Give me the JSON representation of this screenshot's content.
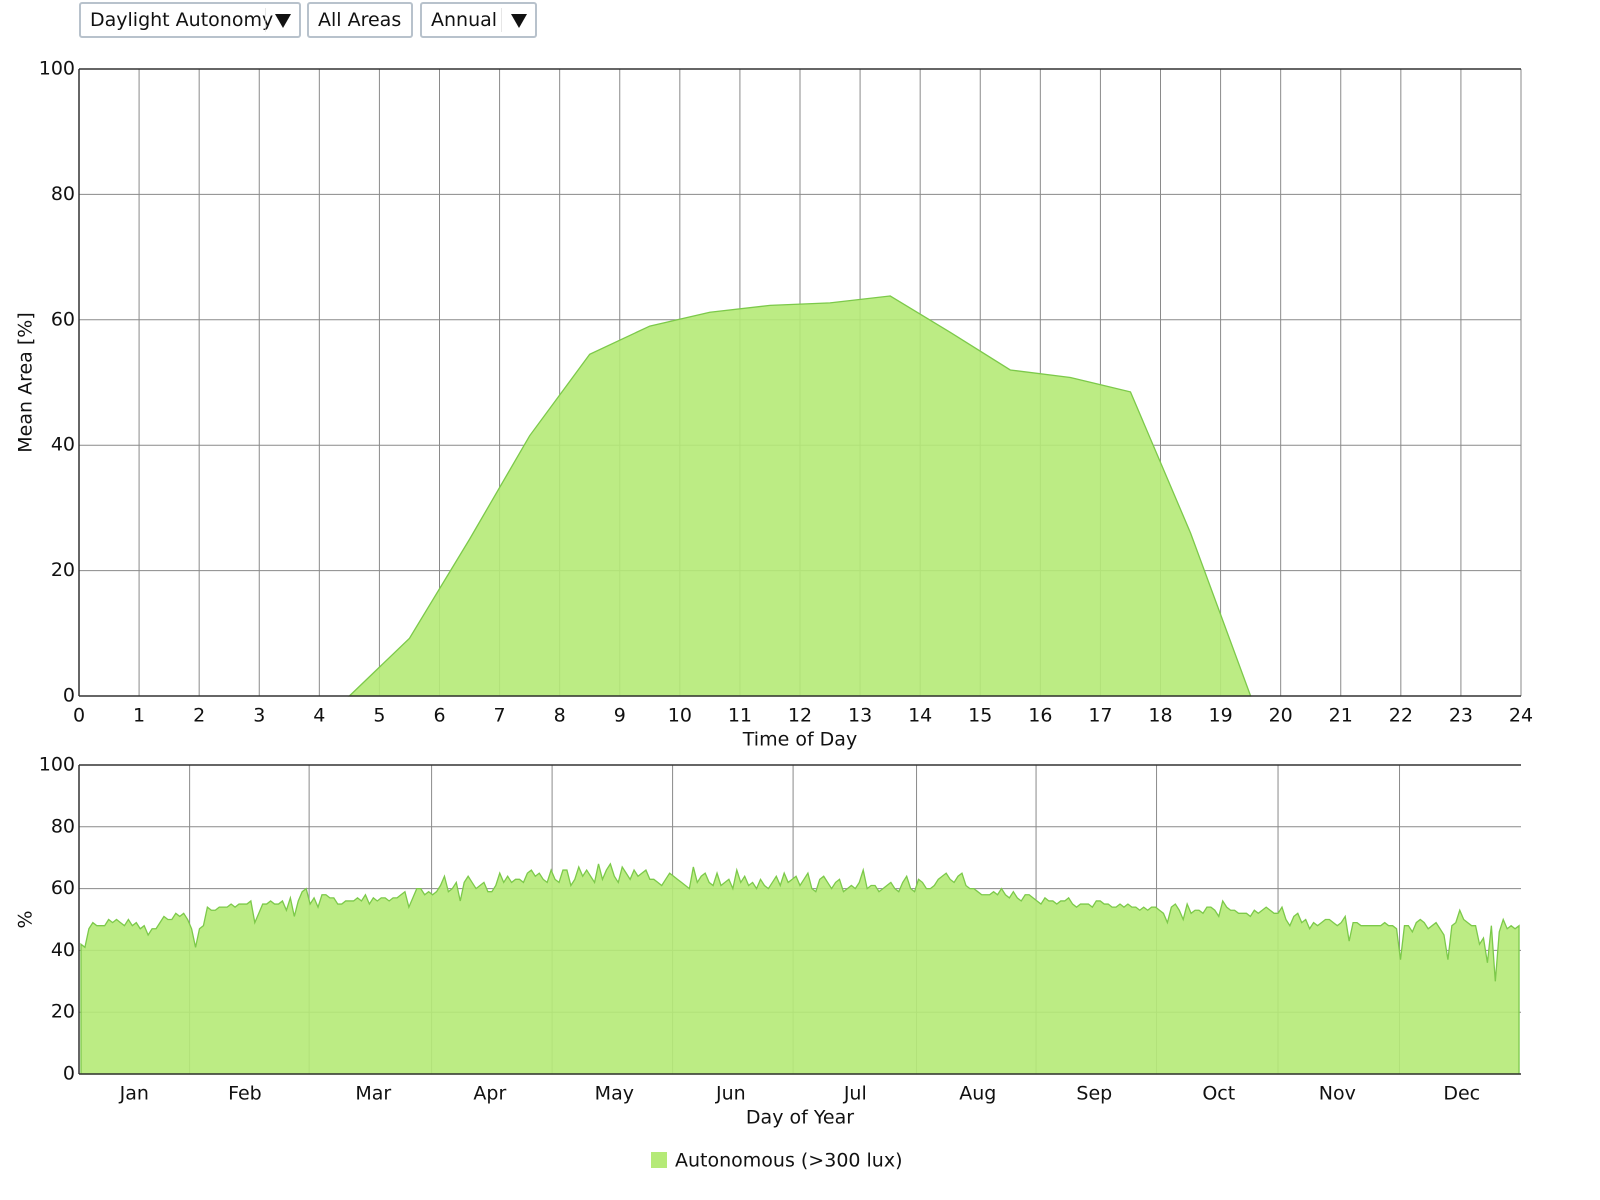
{
  "controls": {
    "metric": "Daylight Autonomy",
    "area": "All Areas",
    "period": "Annual"
  },
  "chart_data": [
    {
      "type": "area",
      "xlabel": "Time of Day",
      "ylabel": "Mean Area [%]",
      "xlim": [
        0,
        24
      ],
      "ylim": [
        0,
        100
      ],
      "xticks": [
        0,
        1,
        2,
        3,
        4,
        5,
        6,
        7,
        8,
        9,
        10,
        11,
        12,
        13,
        14,
        15,
        16,
        17,
        18,
        19,
        20,
        21,
        22,
        23,
        24
      ],
      "yticks": [
        0,
        20,
        40,
        60,
        80,
        100
      ],
      "grid": true,
      "series": [
        {
          "name": "Autonomous (>300 lux)",
          "color": "#b5ea77",
          "line_color": "#7cc94a",
          "x": [
            4.5,
            5.5,
            6.5,
            7.5,
            8.5,
            9.5,
            10.5,
            11.5,
            12.5,
            13.5,
            14.5,
            15.5,
            16.5,
            17.5,
            18.5,
            19.5
          ],
          "values": [
            0,
            9.2,
            25,
            41.5,
            54.5,
            59,
            61.2,
            62.3,
            62.7,
            63.8,
            58,
            52,
            50.8,
            48.5,
            26,
            0
          ]
        }
      ]
    },
    {
      "type": "area",
      "xlabel": "Day of Year",
      "ylabel": "%",
      "xlim": [
        0,
        365
      ],
      "ylim": [
        0,
        100
      ],
      "xticks": [
        {
          "value": 14,
          "label": "Jan"
        },
        {
          "value": 42,
          "label": "Feb"
        },
        {
          "value": 74.5,
          "label": "Mar"
        },
        {
          "value": 104,
          "label": "Apr"
        },
        {
          "value": 135.5,
          "label": "May"
        },
        {
          "value": 165,
          "label": "Jun"
        },
        {
          "value": 196.5,
          "label": "Jul"
        },
        {
          "value": 227.5,
          "label": "Aug"
        },
        {
          "value": 257,
          "label": "Sep"
        },
        {
          "value": 288.5,
          "label": "Oct"
        },
        {
          "value": 318.5,
          "label": "Nov"
        },
        {
          "value": 350,
          "label": "Dec"
        }
      ],
      "yticks": [
        0,
        20,
        40,
        60,
        80,
        100
      ],
      "grid": true,
      "series": [
        {
          "color": "#b5ea77",
          "line_color": "#7cc94a",
          "values": [
            42,
            41,
            47,
            49,
            48,
            48,
            48,
            50,
            49,
            50,
            49,
            48,
            50,
            48,
            49,
            47,
            48,
            45,
            47,
            47,
            49,
            51,
            50,
            50,
            52,
            51,
            52,
            50,
            47,
            41,
            47,
            48,
            54,
            53,
            53,
            54,
            54,
            54,
            55,
            54,
            55,
            55,
            55,
            56,
            49,
            52,
            55,
            55,
            56,
            55,
            55,
            56,
            53,
            57,
            51,
            56,
            59,
            60,
            55,
            57,
            54,
            58,
            58,
            57,
            57,
            55,
            55,
            56,
            56,
            56,
            57,
            56,
            58,
            55,
            57,
            56,
            57,
            57,
            56,
            57,
            57,
            58,
            59,
            54,
            57,
            60,
            60,
            58,
            59,
            58,
            59,
            61,
            64,
            59,
            60,
            62,
            56,
            62,
            64,
            62,
            60,
            61,
            62,
            59,
            59,
            61,
            65,
            62,
            64,
            62,
            63,
            63,
            62,
            65,
            66,
            64,
            65,
            63,
            62,
            66,
            63,
            62,
            66,
            66,
            61,
            63,
            67,
            64,
            66,
            64,
            62,
            68,
            63,
            66,
            68,
            64,
            62,
            67,
            65,
            63,
            66,
            64,
            65,
            66,
            63,
            63,
            62,
            61,
            63,
            65,
            64,
            63,
            62,
            61,
            60,
            67,
            62,
            64,
            65,
            62,
            61,
            65,
            61,
            62,
            63,
            60,
            66,
            62,
            64,
            61,
            62,
            60,
            63,
            61,
            60,
            62,
            64,
            61,
            65,
            62,
            63,
            64,
            61,
            63,
            65,
            60,
            59,
            63,
            64,
            62,
            60,
            62,
            63,
            59,
            60,
            61,
            60,
            62,
            66,
            60,
            61,
            61,
            59,
            60,
            61,
            62,
            60,
            59,
            62,
            64,
            60,
            59,
            63,
            62,
            60,
            60,
            61,
            63,
            64,
            65,
            63,
            62,
            64,
            65,
            61,
            60,
            60,
            59,
            58,
            58,
            58,
            59,
            58,
            60,
            58,
            57,
            59,
            57,
            56,
            58,
            58,
            57,
            56,
            55,
            57,
            56,
            56,
            55,
            56,
            56,
            57,
            55,
            54,
            55,
            55,
            55,
            54,
            56,
            56,
            55,
            55,
            54,
            54,
            55,
            54,
            55,
            54,
            54,
            53,
            54,
            53,
            54,
            54,
            53,
            52,
            49,
            54,
            55,
            53,
            50,
            55,
            52,
            53,
            53,
            52,
            54,
            54,
            53,
            51,
            56,
            54,
            53,
            53,
            52,
            52,
            52,
            51,
            53,
            52,
            53,
            54,
            53,
            52,
            52,
            54,
            50,
            48,
            51,
            52,
            49,
            50,
            47,
            49,
            48,
            49,
            50,
            50,
            49,
            48,
            49,
            51,
            43,
            49,
            49,
            48,
            48,
            48,
            48,
            48,
            48,
            49,
            48,
            48,
            47,
            37,
            48,
            48,
            46,
            49,
            50,
            49,
            47,
            48,
            49,
            47,
            45,
            37,
            48,
            49,
            53,
            50,
            49,
            48,
            48,
            42,
            44,
            36,
            48,
            30,
            46,
            50,
            47,
            48,
            47,
            48
          ]
        }
      ]
    }
  ]
}
